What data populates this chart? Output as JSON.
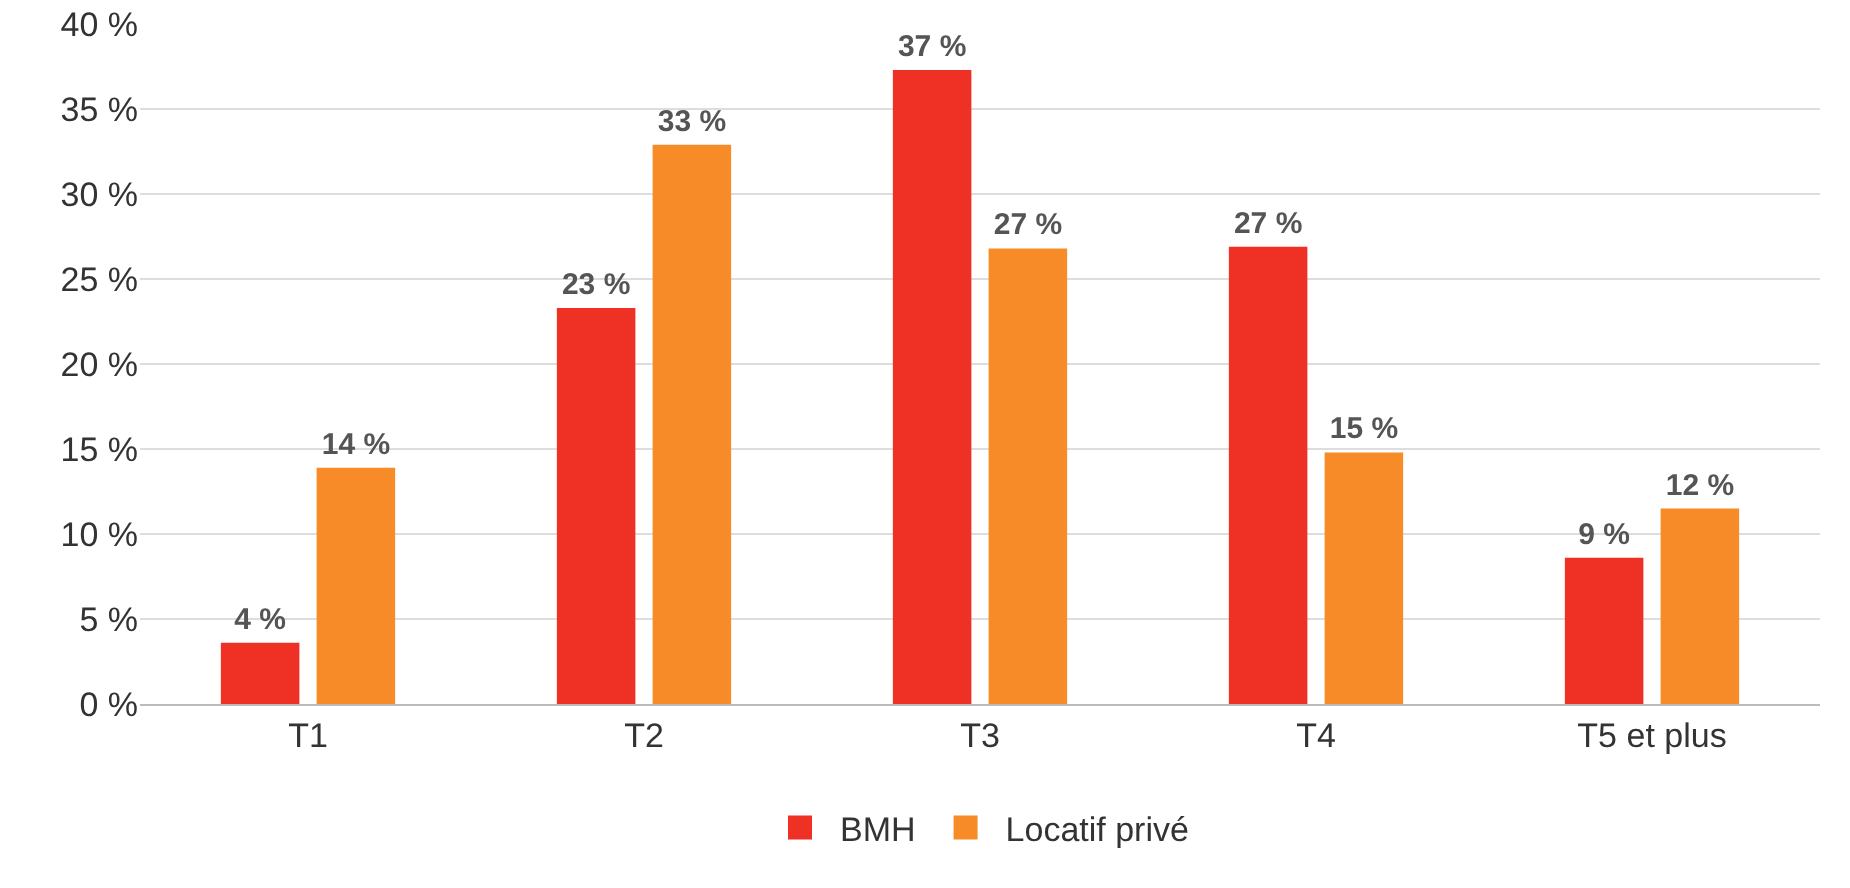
{
  "chart_data": {
    "type": "bar",
    "categories": [
      "T1",
      "T2",
      "T3",
      "T4",
      "T5 et plus"
    ],
    "series": [
      {
        "name": "BMH",
        "color": "#ee3124",
        "values": [
          3.6,
          23.3,
          37.3,
          26.9,
          8.6
        ],
        "value_labels": [
          "4 %",
          "23 %",
          "37 %",
          "27 %",
          "9 %"
        ]
      },
      {
        "name": "Locatif privé",
        "color": "#f68b27",
        "values": [
          13.9,
          32.9,
          26.8,
          14.8,
          11.5
        ],
        "value_labels": [
          "14 %",
          "33 %",
          "27 %",
          "15 %",
          "12 %"
        ]
      }
    ],
    "ylim": [
      0,
      40
    ],
    "yticks": [
      {
        "value": 0,
        "label": "0 %"
      },
      {
        "value": 5,
        "label": "5 %"
      },
      {
        "value": 10,
        "label": "10 %"
      },
      {
        "value": 15,
        "label": "15 %"
      },
      {
        "value": 20,
        "label": "20 %"
      },
      {
        "value": 25,
        "label": "25 %"
      },
      {
        "value": 30,
        "label": "30 %"
      },
      {
        "value": 35,
        "label": "35 %"
      },
      {
        "value": 40,
        "label": "40 %"
      }
    ],
    "grid": "y",
    "legend": "bottom"
  }
}
